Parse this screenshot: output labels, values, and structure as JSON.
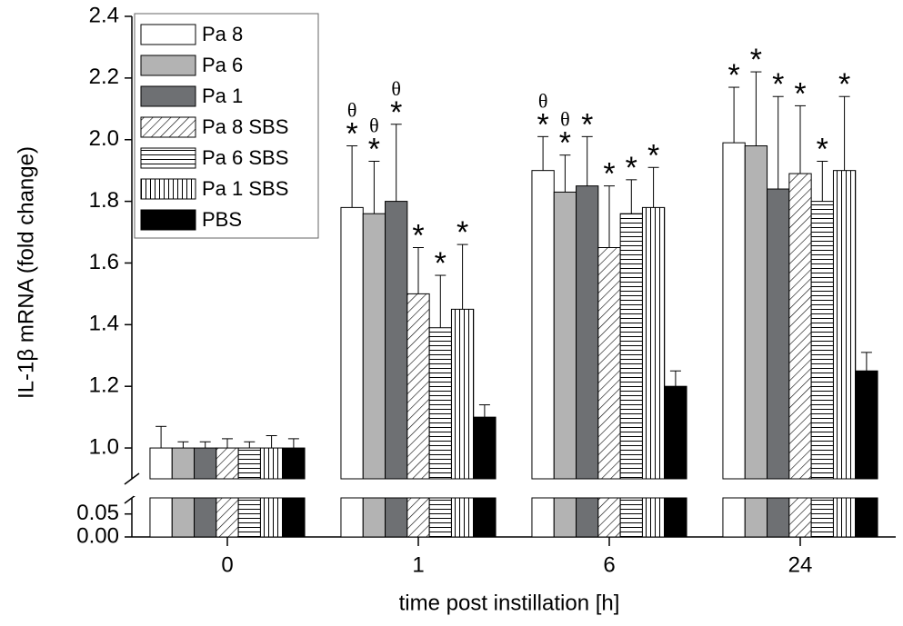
{
  "chart_data": {
    "type": "bar",
    "x_label": "time post instillation [h]",
    "y_label": "IL-1β mRNA (fold change)",
    "categories": [
      "0",
      "1",
      "6",
      "24"
    ],
    "ylim": [
      0.9,
      2.4
    ],
    "yticks": [
      {
        "value": 1.0,
        "label": "1.0"
      },
      {
        "value": 1.2,
        "label": "1.2"
      },
      {
        "value": 1.4,
        "label": "1.4"
      },
      {
        "value": 1.6,
        "label": "1.6"
      },
      {
        "value": 1.8,
        "label": "1.8"
      },
      {
        "value": 2.0,
        "label": "2.0"
      },
      {
        "value": 2.2,
        "label": "2.2"
      },
      {
        "value": 2.4,
        "label": "2.4"
      }
    ],
    "lower_ylim": [
      0,
      0.085
    ],
    "lower_yticks": [
      {
        "value": 0,
        "label": "0.00"
      },
      {
        "value": 0.05,
        "label": "0.05"
      }
    ],
    "legend_position": "upper left",
    "series": [
      {
        "name": "Pa 8",
        "color": "#ffffff",
        "hatch": "none",
        "values": [
          1.0,
          1.78,
          1.9,
          1.99
        ],
        "errors": [
          0.07,
          0.2,
          0.11,
          0.18
        ],
        "star_labels": [
          null,
          "*",
          "*",
          "*"
        ],
        "theta_labels": [
          null,
          "θ",
          "θ",
          null
        ]
      },
      {
        "name": "Pa 6",
        "color": "#b3b3b3",
        "hatch": "none",
        "values": [
          1.0,
          1.76,
          1.83,
          1.98
        ],
        "errors": [
          0.02,
          0.17,
          0.12,
          0.24
        ],
        "star_labels": [
          null,
          "*",
          "*",
          "*"
        ],
        "theta_labels": [
          null,
          "θ",
          "θ",
          null
        ]
      },
      {
        "name": "Pa 1",
        "color": "#6e7073",
        "hatch": "none",
        "values": [
          1.0,
          1.8,
          1.85,
          1.84
        ],
        "errors": [
          0.02,
          0.25,
          0.16,
          0.3
        ],
        "star_labels": [
          null,
          "*",
          "*",
          "*"
        ],
        "theta_labels": [
          null,
          "θ",
          null,
          null
        ]
      },
      {
        "name": "Pa 8 SBS",
        "color": "#ffffff",
        "hatch": "diagonal",
        "values": [
          1.0,
          1.5,
          1.65,
          1.89
        ],
        "errors": [
          0.03,
          0.15,
          0.2,
          0.22
        ],
        "star_labels": [
          null,
          "*",
          "*",
          "*"
        ],
        "theta_labels": [
          null,
          null,
          null,
          null
        ]
      },
      {
        "name": "Pa 6 SBS",
        "color": "#ffffff",
        "hatch": "horizontal",
        "values": [
          1.0,
          1.39,
          1.76,
          1.8
        ],
        "errors": [
          0.02,
          0.17,
          0.11,
          0.13
        ],
        "star_labels": [
          null,
          "*",
          "*",
          "*"
        ],
        "theta_labels": [
          null,
          null,
          null,
          null
        ]
      },
      {
        "name": "Pa 1 SBS",
        "color": "#ffffff",
        "hatch": "vertical",
        "values": [
          1.0,
          1.45,
          1.78,
          1.9
        ],
        "errors": [
          0.04,
          0.21,
          0.13,
          0.24
        ],
        "star_labels": [
          null,
          "*",
          "*",
          "*"
        ],
        "theta_labels": [
          null,
          null,
          null,
          null
        ]
      },
      {
        "name": "PBS",
        "color": "#000000",
        "hatch": "none",
        "values": [
          1.0,
          1.1,
          1.2,
          1.25
        ],
        "errors": [
          0.03,
          0.04,
          0.05,
          0.06
        ],
        "star_labels": [
          null,
          null,
          null,
          null
        ],
        "theta_labels": [
          null,
          null,
          null,
          null
        ]
      }
    ]
  }
}
